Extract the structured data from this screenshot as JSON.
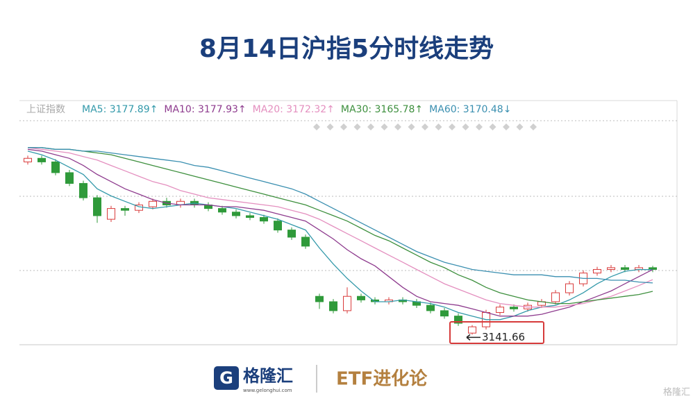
{
  "chart_data": {
    "type": "candlestick",
    "title": "8月14日沪指5分时线走势",
    "label": "上证指数",
    "up_color": "#d93a3a",
    "down_color": "#2f9a3a",
    "ylim": [
      3136,
      3249
    ],
    "open": [
      3238,
      3240,
      3238,
      3232,
      3226,
      3218,
      3206,
      3212,
      3211,
      3213,
      3216,
      3214,
      3216,
      3214,
      3212,
      3210,
      3208,
      3207,
      3205,
      3200,
      3196,
      3163,
      3160,
      3155,
      3163,
      3161,
      3160,
      3161,
      3160,
      3158,
      3155,
      3152,
      3142.5,
      3146,
      3154,
      3157,
      3156,
      3158,
      3160,
      3165,
      3170,
      3176,
      3178,
      3179,
      3178,
      3179
    ],
    "high": [
      3241.5,
      3241.5,
      3239.5,
      3233.5,
      3227.5,
      3219.5,
      3213.5,
      3213.5,
      3215.5,
      3217.5,
      3218,
      3217.5,
      3217.5,
      3215.5,
      3213.5,
      3211.5,
      3209.5,
      3208.5,
      3206.5,
      3201.5,
      3197.5,
      3164.5,
      3161.5,
      3168,
      3164.5,
      3162.5,
      3162.5,
      3162.5,
      3161.5,
      3159.5,
      3156.5,
      3153.5,
      3147,
      3155.5,
      3158.5,
      3158.5,
      3159.5,
      3161.5,
      3166.5,
      3171.5,
      3177.5,
      3179.5,
      3180.5,
      3180.5,
      3180.5,
      3180
    ],
    "low": [
      3236.5,
      3236.5,
      3230.5,
      3224.5,
      3216.5,
      3204,
      3204.5,
      3208,
      3209.5,
      3211.5,
      3212.5,
      3212.5,
      3212.5,
      3210.5,
      3208.5,
      3206.5,
      3205.5,
      3203.5,
      3198.5,
      3194.5,
      3189.5,
      3156,
      3153.5,
      3153.5,
      3159.5,
      3158.5,
      3158.5,
      3158.5,
      3156.5,
      3153.5,
      3150.5,
      3146.5,
      3141.66,
      3144.5,
      3152.5,
      3154.5,
      3154.5,
      3156.5,
      3158.5,
      3163.5,
      3168.5,
      3174.5,
      3176.5,
      3176.5,
      3176.5,
      3176.5
    ],
    "close": [
      3240,
      3238,
      3232,
      3226,
      3218,
      3208,
      3212,
      3211,
      3214,
      3216,
      3214,
      3216,
      3214,
      3212,
      3210,
      3208,
      3207,
      3205,
      3200,
      3196,
      3191,
      3160,
      3155,
      3163,
      3161,
      3160,
      3161,
      3160,
      3158,
      3155,
      3152,
      3148,
      3146,
      3154,
      3157,
      3156,
      3158,
      3160,
      3165,
      3170,
      3176,
      3178,
      3179,
      3178,
      3179,
      3178
    ],
    "annotation": {
      "index": 32,
      "text": "3141.66"
    },
    "series": [
      {
        "name": "MA5: 3177.89↑",
        "color": "#3399aa",
        "values": [
          3244,
          3242,
          3239,
          3235,
          3231,
          3223,
          3219,
          3216,
          3213,
          3212,
          3213,
          3214,
          3215,
          3214,
          3213,
          3212,
          3210,
          3208,
          3206,
          3203,
          3200,
          3190,
          3181,
          3173,
          3166,
          3160,
          3160,
          3161,
          3160,
          3159,
          3157,
          3154,
          3152,
          3150,
          3150,
          3152,
          3155,
          3157,
          3158,
          3161,
          3165,
          3170,
          3174,
          3177,
          3178,
          3177.89
        ]
      },
      {
        "name": "MA10: 3177.93↑",
        "color": "#8e3b8e",
        "values": [
          3245,
          3244,
          3242,
          3240,
          3236,
          3231,
          3227,
          3223,
          3220,
          3217,
          3215,
          3214,
          3214,
          3214,
          3213,
          3213,
          3212,
          3211,
          3209,
          3207,
          3205,
          3200,
          3195,
          3189,
          3184,
          3180,
          3174,
          3168,
          3163,
          3160,
          3159,
          3158,
          3156,
          3154,
          3152,
          3152,
          3152,
          3153,
          3155,
          3157,
          3160,
          3163,
          3166,
          3170,
          3174,
          3177.93
        ]
      },
      {
        "name": "MA20: 3172.32↑",
        "color": "#e48fbf",
        "values": [
          3246,
          3245,
          3244,
          3243,
          3241,
          3239,
          3236,
          3233,
          3230,
          3227,
          3225,
          3222,
          3220,
          3218,
          3217,
          3216,
          3215,
          3214,
          3213,
          3211,
          3209,
          3206,
          3202,
          3198,
          3194,
          3190,
          3186,
          3182,
          3178,
          3174,
          3170,
          3167,
          3164,
          3161,
          3159,
          3158,
          3157,
          3157,
          3157,
          3158,
          3159,
          3161,
          3163,
          3166,
          3169,
          3172.32
        ]
      },
      {
        "name": "MA30: 3165.78↑",
        "color": "#3d8f3d",
        "values": [
          3246,
          3246,
          3245,
          3245,
          3244,
          3243,
          3242,
          3240,
          3238,
          3236,
          3234,
          3232,
          3230,
          3228,
          3226,
          3224,
          3222,
          3220,
          3218,
          3216,
          3214,
          3211,
          3208,
          3205,
          3201,
          3197,
          3194,
          3190,
          3186,
          3182,
          3179,
          3175,
          3172,
          3168,
          3165,
          3163,
          3161,
          3160,
          3159,
          3159,
          3160,
          3161,
          3162,
          3163,
          3164,
          3165.78
        ]
      },
      {
        "name": "MA60: 3170.48↓",
        "color": "#3a8fb0",
        "values": [
          3246,
          3246,
          3245,
          3245,
          3244,
          3244,
          3243,
          3242,
          3241,
          3240,
          3239,
          3238,
          3236,
          3235,
          3233,
          3231,
          3229,
          3227,
          3225,
          3223,
          3220,
          3216,
          3212,
          3208,
          3204,
          3200,
          3196,
          3192,
          3188,
          3185,
          3182,
          3180,
          3178,
          3177,
          3176,
          3175,
          3175,
          3175,
          3174,
          3174,
          3173,
          3173,
          3172,
          3172,
          3171,
          3170.48
        ]
      }
    ]
  },
  "footer": {
    "brand": "格隆汇",
    "url": "www.gelonghui.com",
    "column": "ETF进化论",
    "watermark": "格隆汇"
  }
}
